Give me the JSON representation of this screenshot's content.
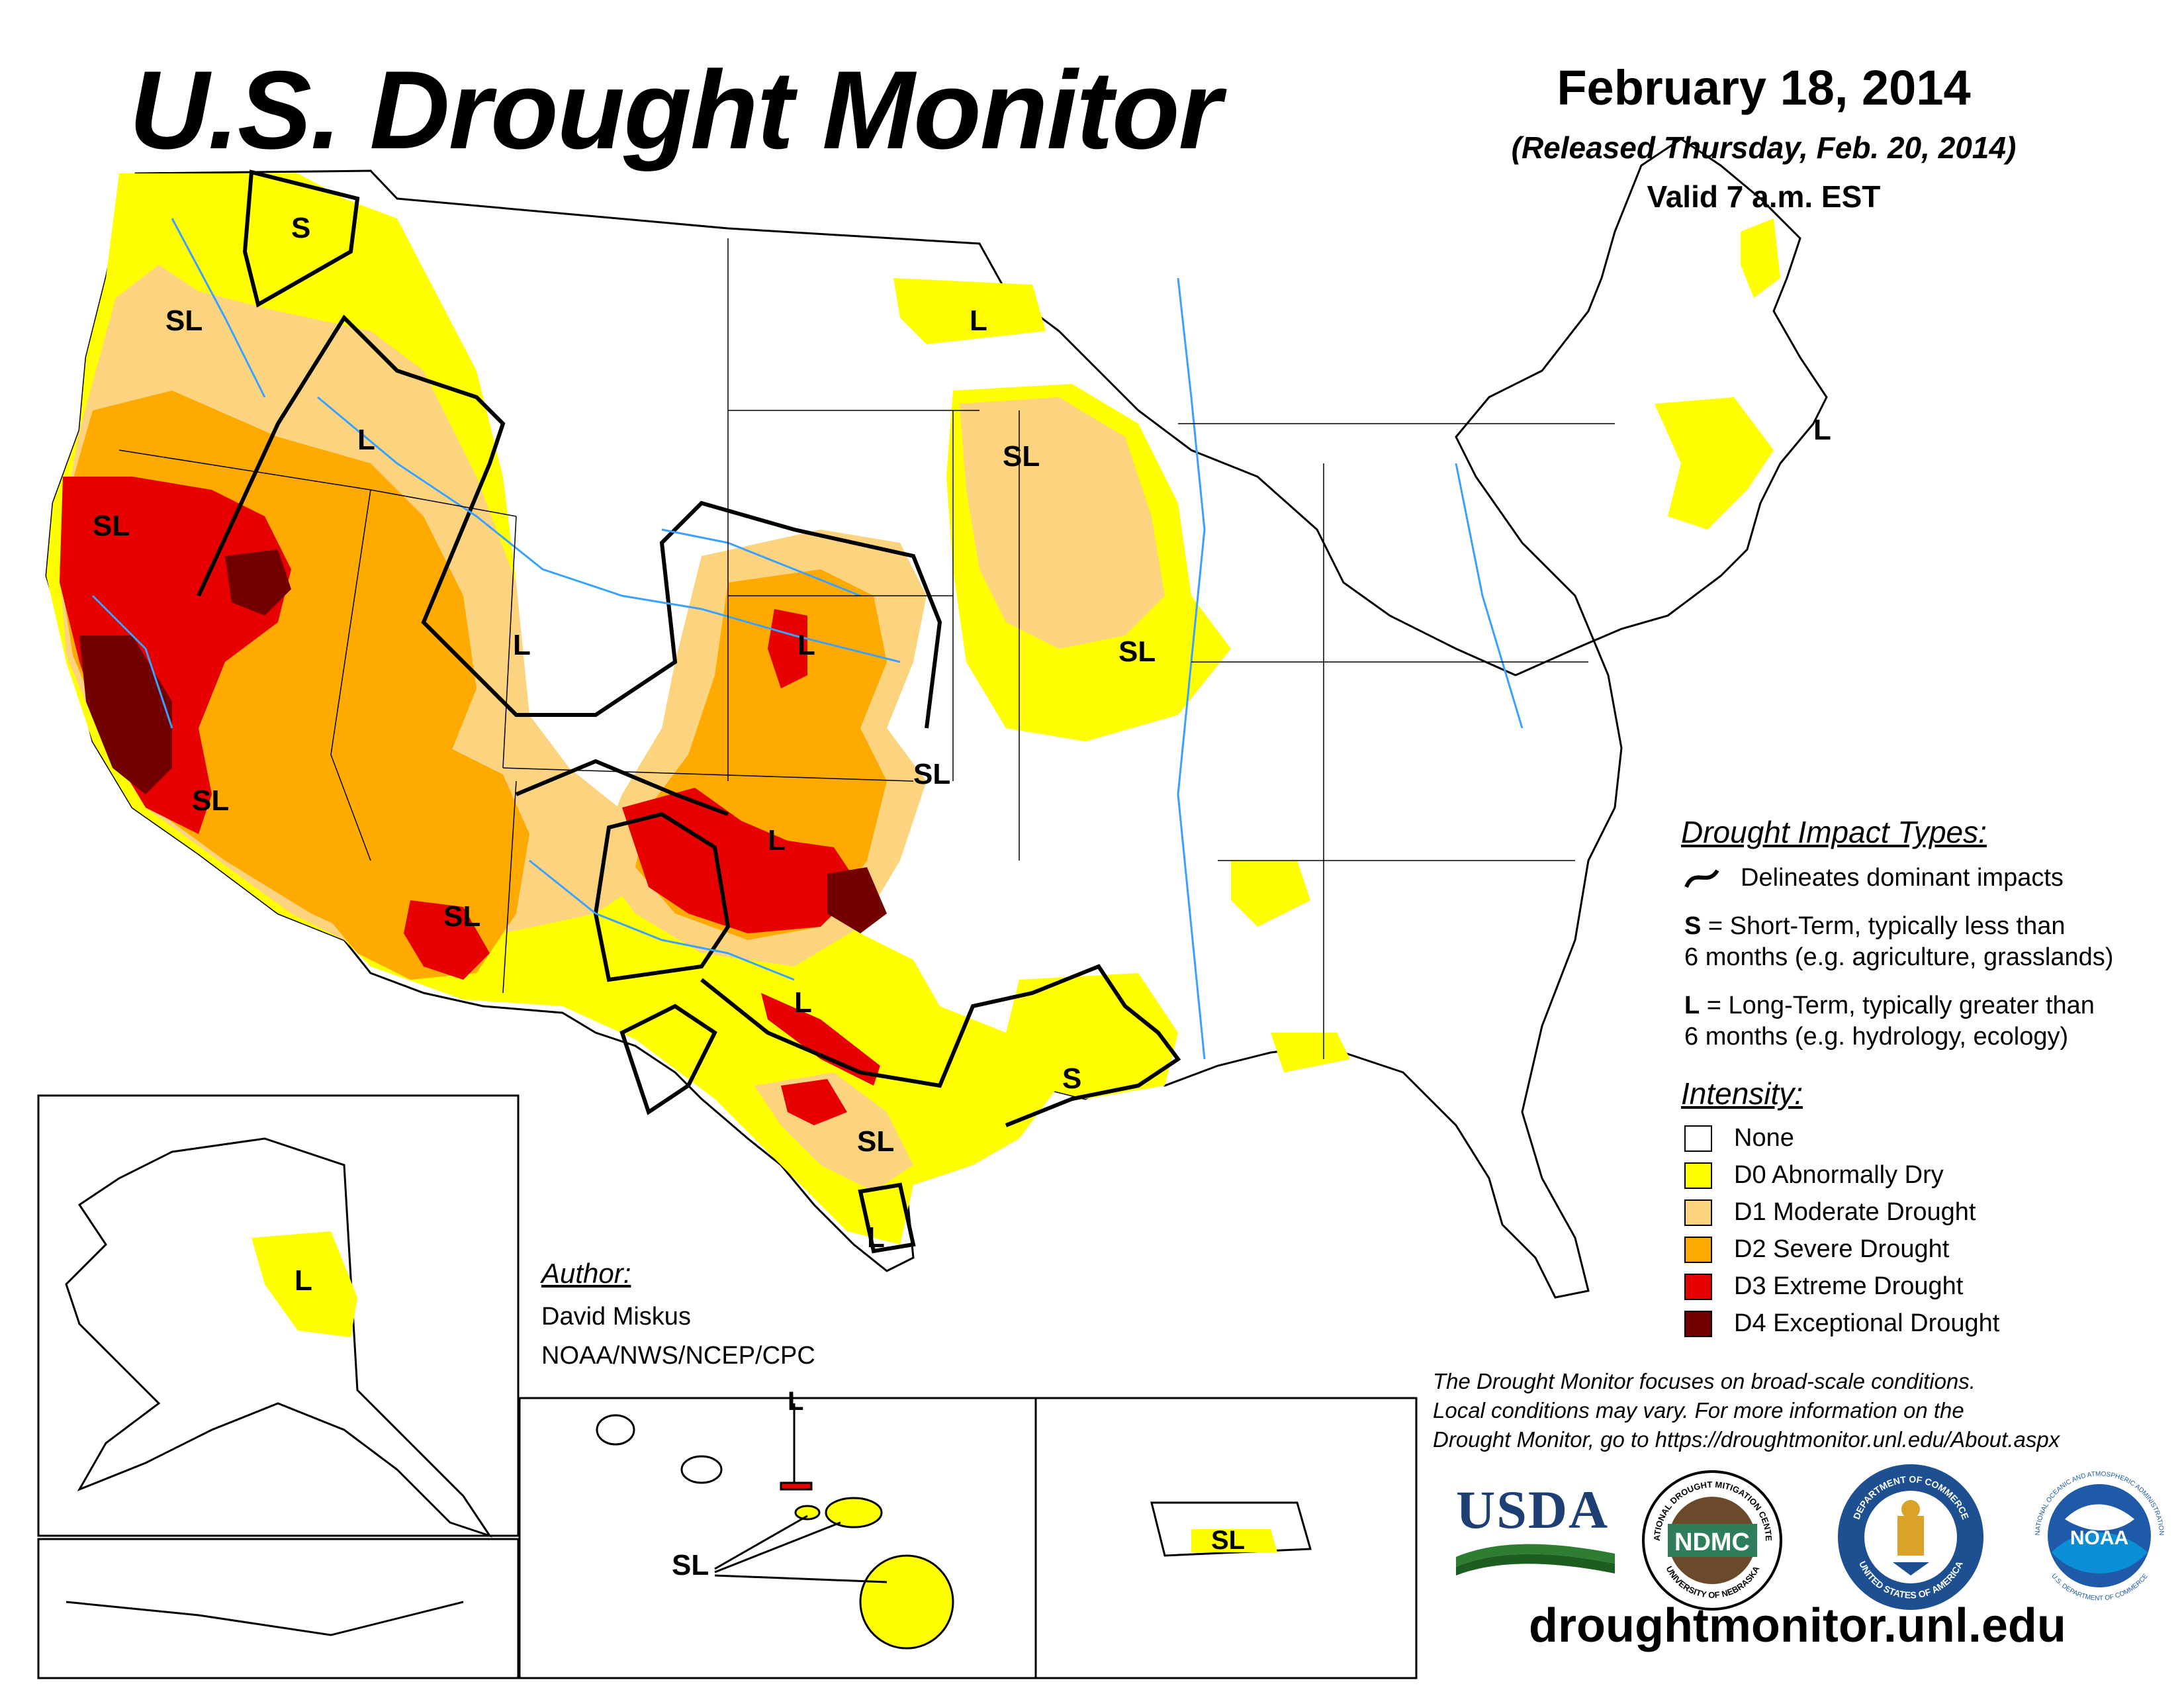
{
  "header": {
    "title": "U.S. Drought Monitor",
    "date": "February 18, 2014",
    "released": "(Released Thursday, Feb. 20, 2014)",
    "valid": "Valid 7 a.m. EST"
  },
  "impact_legend": {
    "title": "Drought Impact Types:",
    "line_desc": "Delineates dominant impacts",
    "short_term_code": "S",
    "short_term_line1": "= Short-Term, typically less than",
    "short_term_line2": "6 months (e.g. agriculture, grasslands)",
    "long_term_code": "L",
    "long_term_line1": "= Long-Term, typically greater than",
    "long_term_line2": "6 months (e.g. hydrology, ecology)"
  },
  "intensity_legend": {
    "title": "Intensity:",
    "items": [
      {
        "label": "None",
        "color": "#ffffff"
      },
      {
        "label": "D0 Abnormally Dry",
        "color": "#ffff00"
      },
      {
        "label": "D1 Moderate Drought",
        "color": "#fcd37f"
      },
      {
        "label": "D2 Severe Drought",
        "color": "#ffaa00"
      },
      {
        "label": "D3 Extreme Drought",
        "color": "#e60000"
      },
      {
        "label": "D4 Exceptional Drought",
        "color": "#730000"
      }
    ]
  },
  "author": {
    "title": "Author:",
    "name": "David Miskus",
    "org": "NOAA/NWS/NCEP/CPC"
  },
  "disclaimer": {
    "line1": "The Drought Monitor focuses on broad-scale conditions.",
    "line2": "Local conditions may vary. For more information on the",
    "line3": "Drought Monitor, go to https://droughtmonitor.unl.edu/About.aspx"
  },
  "logos": {
    "usda": "USDA",
    "ndmc": "NDMC",
    "ndmc_ring_top": "NATIONAL DROUGHT MITIGATION CENTER",
    "ndmc_ring_bottom": "UNIVERSITY OF NEBRASKA",
    "commerce_ring_top": "DEPARTMENT OF COMMERCE",
    "commerce_ring_bottom": "UNITED STATES OF AMERICA",
    "noaa": "NOAA",
    "noaa_ring_top": "NATIONAL OCEANIC AND ATMOSPHERIC ADMINISTRATION",
    "noaa_ring_bottom": "U.S. DEPARTMENT OF COMMERCE"
  },
  "website": "droughtmonitor.unl.edu",
  "map_labels": {
    "wa_s": "S",
    "wa_sl": "SL",
    "id_l": "L",
    "ca_sl_north": "SL",
    "ca_sl_south": "SL",
    "ut_l": "L",
    "az_sl": "SL",
    "co_l": "L",
    "ok_l": "L",
    "ks_sl": "SL",
    "tx_l": "L",
    "tx_sl": "SL",
    "tx_l_south": "L",
    "la_s": "S",
    "mn_l": "L",
    "ia_sl": "SL",
    "il_sl": "SL",
    "ne_l": "L",
    "ak_l": "L",
    "hi_l": "L",
    "hi_sl": "SL",
    "pr_sl": "SL"
  }
}
